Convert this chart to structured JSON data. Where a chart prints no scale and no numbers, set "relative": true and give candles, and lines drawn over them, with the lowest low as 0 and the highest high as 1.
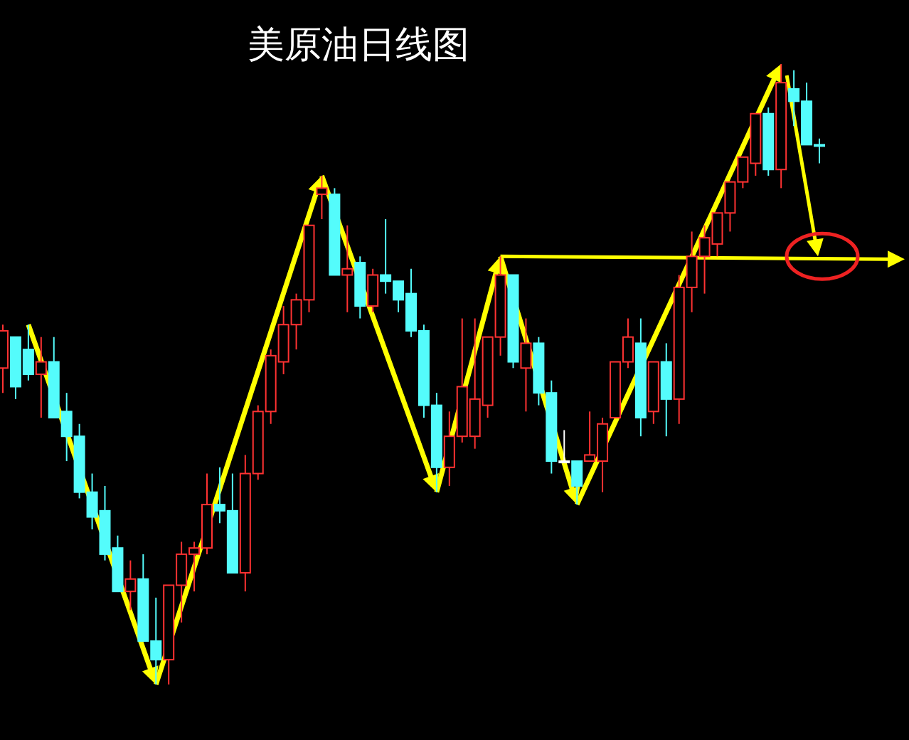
{
  "chart_data": {
    "type": "candlestick",
    "title": "美原油日线图",
    "relative": true,
    "categories": [
      null,
      null,
      null,
      null,
      null,
      null,
      null,
      null,
      null,
      null,
      null,
      null,
      null,
      null,
      null,
      null,
      null,
      null,
      null,
      null,
      null,
      null,
      null,
      null,
      null,
      null,
      null,
      null,
      null,
      null,
      null,
      null,
      null,
      null,
      null,
      null,
      null,
      null,
      null,
      null,
      null,
      null,
      null,
      null,
      null,
      null,
      null,
      null,
      null,
      null,
      null,
      null,
      null,
      null,
      null,
      null,
      null,
      null,
      null,
      null,
      null,
      null,
      null,
      null,
      null
    ],
    "ohlc": [
      [
        0.51,
        0.58,
        0.47,
        0.57
      ],
      [
        0.56,
        0.56,
        0.46,
        0.48
      ],
      [
        0.54,
        0.58,
        0.49,
        0.5
      ],
      [
        0.5,
        0.56,
        0.43,
        0.52
      ],
      [
        0.52,
        0.56,
        0.43,
        0.43
      ],
      [
        0.44,
        0.47,
        0.36,
        0.4
      ],
      [
        0.4,
        0.42,
        0.3,
        0.31
      ],
      [
        0.31,
        0.34,
        0.25,
        0.27
      ],
      [
        0.28,
        0.32,
        0.2,
        0.21
      ],
      [
        0.22,
        0.24,
        0.15,
        0.15
      ],
      [
        0.15,
        0.2,
        0.12,
        0.17
      ],
      [
        0.17,
        0.21,
        0.07,
        0.07
      ],
      [
        0.07,
        0.14,
        0.0,
        0.04
      ],
      [
        0.04,
        0.16,
        0.0,
        0.16
      ],
      [
        0.16,
        0.23,
        0.1,
        0.21
      ],
      [
        0.21,
        0.23,
        0.15,
        0.22
      ],
      [
        0.22,
        0.34,
        0.21,
        0.29
      ],
      [
        0.29,
        0.35,
        0.26,
        0.28
      ],
      [
        0.28,
        0.34,
        0.18,
        0.18
      ],
      [
        0.18,
        0.37,
        0.15,
        0.34
      ],
      [
        0.34,
        0.45,
        0.33,
        0.44
      ],
      [
        0.44,
        0.54,
        0.42,
        0.53
      ],
      [
        0.52,
        0.61,
        0.5,
        0.58
      ],
      [
        0.58,
        0.63,
        0.54,
        0.62
      ],
      [
        0.62,
        0.74,
        0.6,
        0.74
      ],
      [
        0.79,
        0.82,
        0.75,
        0.8
      ],
      [
        0.79,
        0.8,
        0.66,
        0.66
      ],
      [
        0.66,
        0.74,
        0.6,
        0.67
      ],
      [
        0.68,
        0.69,
        0.59,
        0.61
      ],
      [
        0.61,
        0.67,
        0.6,
        0.66
      ],
      [
        0.66,
        0.75,
        0.63,
        0.65
      ],
      [
        0.65,
        0.65,
        0.6,
        0.62
      ],
      [
        0.63,
        0.67,
        0.56,
        0.57
      ],
      [
        0.57,
        0.58,
        0.43,
        0.45
      ],
      [
        0.45,
        0.47,
        0.31,
        0.35
      ],
      [
        0.35,
        0.44,
        0.32,
        0.4
      ],
      [
        0.4,
        0.59,
        0.39,
        0.48
      ],
      [
        0.4,
        0.59,
        0.38,
        0.46
      ],
      [
        0.45,
        0.56,
        0.43,
        0.56
      ],
      [
        0.56,
        0.69,
        0.53,
        0.66
      ],
      [
        0.66,
        0.66,
        0.51,
        0.52
      ],
      [
        0.51,
        0.59,
        0.44,
        0.55
      ],
      [
        0.55,
        0.56,
        0.45,
        0.47
      ],
      [
        0.47,
        0.49,
        0.34,
        0.36
      ],
      [
        0.36,
        0.41,
        0.36,
        0.36
      ],
      [
        0.36,
        0.36,
        0.29,
        0.32
      ],
      [
        0.36,
        0.44,
        0.36,
        0.37
      ],
      [
        0.36,
        0.43,
        0.31,
        0.42
      ],
      [
        0.43,
        0.52,
        0.43,
        0.52
      ],
      [
        0.52,
        0.59,
        0.51,
        0.56
      ],
      [
        0.55,
        0.59,
        0.4,
        0.43
      ],
      [
        0.44,
        0.52,
        0.42,
        0.52
      ],
      [
        0.52,
        0.55,
        0.4,
        0.46
      ],
      [
        0.46,
        0.66,
        0.42,
        0.64
      ],
      [
        0.64,
        0.73,
        0.6,
        0.69
      ],
      [
        0.69,
        0.74,
        0.63,
        0.72
      ],
      [
        0.71,
        0.76,
        0.69,
        0.76
      ],
      [
        0.76,
        0.81,
        0.73,
        0.81
      ],
      [
        0.81,
        0.85,
        0.8,
        0.85
      ],
      [
        0.84,
        0.92,
        0.82,
        0.92
      ],
      [
        0.92,
        0.93,
        0.82,
        0.83
      ],
      [
        0.83,
        1.0,
        0.8,
        0.97
      ],
      [
        0.96,
        0.99,
        0.9,
        0.94
      ],
      [
        0.94,
        0.97,
        0.87,
        0.87
      ],
      [
        0.87,
        0.88,
        0.84,
        0.87
      ]
    ],
    "colors": [
      "#ff3232",
      "#54fcfc",
      "#54fcfc",
      "#ff3232",
      "#54fcfc",
      "#54fcfc",
      "#54fcfc",
      "#54fcfc",
      "#54fcfc",
      "#54fcfc",
      "#ff3232",
      "#54fcfc",
      "#54fcfc",
      "#ff3232",
      "#ff3232",
      "#ff3232",
      "#ff3232",
      "#54fcfc",
      "#54fcfc",
      "#ff3232",
      "#ff3232",
      "#ff3232",
      "#ff3232",
      "#ff3232",
      "#ff3232",
      "#ff3232",
      "#54fcfc",
      "#ff3232",
      "#54fcfc",
      "#ff3232",
      "#54fcfc",
      "#54fcfc",
      "#54fcfc",
      "#54fcfc",
      "#54fcfc",
      "#ff3232",
      "#ff3232",
      "#ff3232",
      "#ff3232",
      "#ff3232",
      "#54fcfc",
      "#ff3232",
      "#54fcfc",
      "#54fcfc",
      "#ffffff",
      "#54fcfc",
      "#ff3232",
      "#ff3232",
      "#ff3232",
      "#ff3232",
      "#54fcfc",
      "#ff3232",
      "#54fcfc",
      "#ff3232",
      "#ff3232",
      "#ff3232",
      "#ff3232",
      "#ff3232",
      "#ff3232",
      "#ff3232",
      "#54fcfc",
      "#ff3232",
      "#54fcfc",
      "#54fcfc",
      "#54fcfc"
    ]
  }
}
